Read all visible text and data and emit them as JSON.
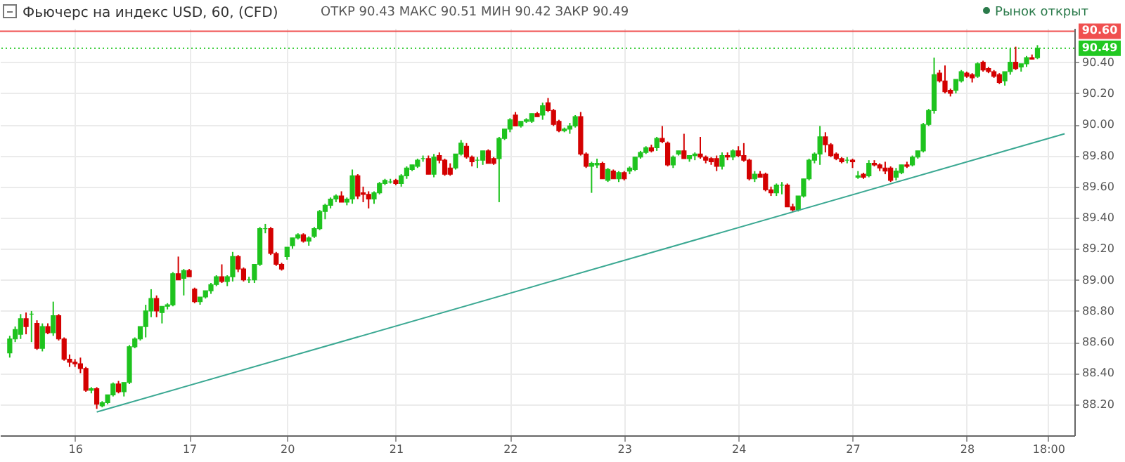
{
  "chart_data": {
    "type": "candlestick",
    "title": "Фьючерс на индекс USD, 60, (CFD)",
    "annotations": [
      "ОТКР 90.43 МАКС 90.51 МИН 90.42 ЗАКР 90.49",
      "Рынок открыт"
    ],
    "categories": [
      null,
      null,
      null,
      null,
      null,
      null,
      null,
      null,
      null,
      null,
      null,
      null,
      "16",
      null,
      null,
      null,
      null,
      null,
      null,
      null,
      null,
      null,
      null,
      null,
      null,
      null,
      null,
      null,
      null,
      null,
      null,
      null,
      null,
      "17",
      null,
      null,
      null,
      null,
      null,
      null,
      null,
      null,
      null,
      null,
      null,
      null,
      null,
      null,
      null,
      null,
      null,
      "20",
      null,
      null,
      null,
      null,
      null,
      null,
      null,
      null,
      null,
      null,
      null,
      null,
      null,
      null,
      null,
      null,
      null,
      null,
      null,
      "21",
      null,
      null,
      null,
      null,
      null,
      null,
      null,
      null,
      null,
      null,
      null,
      null,
      null,
      null,
      null,
      null,
      null,
      null,
      null,
      null,
      "22",
      null,
      null,
      null,
      null,
      null,
      null,
      null,
      null,
      null,
      null,
      null,
      null,
      null,
      null,
      null,
      null,
      null,
      null,
      null,
      null,
      "23",
      null,
      null,
      null,
      null,
      null,
      null,
      null,
      null,
      null,
      null,
      null,
      null,
      null,
      null,
      null,
      null,
      null,
      null,
      null,
      null,
      "24",
      null,
      null,
      null,
      null,
      null,
      null,
      null,
      null,
      null,
      null,
      null,
      null,
      null,
      null,
      null,
      null,
      null,
      null,
      null,
      null,
      "27",
      null,
      null,
      null,
      null,
      null,
      null,
      null,
      null,
      null,
      null,
      null,
      null,
      null,
      null,
      null,
      null,
      null,
      null,
      null,
      null,
      "28",
      null,
      null,
      null,
      null,
      null,
      null,
      null,
      null,
      null,
      null,
      null,
      null,
      null,
      null,
      "18:00",
      null,
      null,
      null
    ],
    "ohlc": [
      [
        88.53,
        88.64,
        88.5,
        88.62
      ],
      [
        88.62,
        88.7,
        88.6,
        88.68
      ],
      [
        88.65,
        88.78,
        88.62,
        88.75
      ],
      [
        88.75,
        88.79,
        88.65,
        88.7
      ],
      [
        88.78,
        88.8,
        88.6,
        88.78
      ],
      [
        88.72,
        88.74,
        88.55,
        88.56
      ],
      [
        88.56,
        88.72,
        88.54,
        88.7
      ],
      [
        88.7,
        88.72,
        88.65,
        88.66
      ],
      [
        88.66,
        88.86,
        88.64,
        88.77
      ],
      [
        88.77,
        88.78,
        88.61,
        88.62
      ],
      [
        88.62,
        88.63,
        88.48,
        88.49
      ],
      [
        88.49,
        88.52,
        88.44,
        88.47
      ],
      [
        88.47,
        88.49,
        88.44,
        88.46
      ],
      [
        88.46,
        88.5,
        88.4,
        88.43
      ],
      [
        88.43,
        88.44,
        88.28,
        88.29
      ],
      [
        88.29,
        88.31,
        88.27,
        88.3
      ],
      [
        88.3,
        88.31,
        88.17,
        88.2
      ],
      [
        88.19,
        88.22,
        88.18,
        88.21
      ],
      [
        88.21,
        88.26,
        88.2,
        88.26
      ],
      [
        88.26,
        88.34,
        88.25,
        88.33
      ],
      [
        88.33,
        88.35,
        88.27,
        88.28
      ],
      [
        88.28,
        88.34,
        88.25,
        88.34
      ],
      [
        88.34,
        88.58,
        88.33,
        88.57
      ],
      [
        88.57,
        88.63,
        88.56,
        88.62
      ],
      [
        88.62,
        88.7,
        88.61,
        88.7
      ],
      [
        88.7,
        88.84,
        88.63,
        88.8
      ],
      [
        88.8,
        88.94,
        88.76,
        88.88
      ],
      [
        88.88,
        88.9,
        88.76,
        88.8
      ],
      [
        88.79,
        88.83,
        88.72,
        88.83
      ],
      [
        88.83,
        88.85,
        88.81,
        88.84
      ],
      [
        88.84,
        89.05,
        88.83,
        89.04
      ],
      [
        89.04,
        89.15,
        89.0,
        89.0
      ],
      [
        89.01,
        89.07,
        88.9,
        89.06
      ],
      [
        89.06,
        89.07,
        89.02,
        89.02
      ],
      [
        88.94,
        88.95,
        88.85,
        88.86
      ],
      [
        88.86,
        88.89,
        88.84,
        88.89
      ],
      [
        88.89,
        88.93,
        88.88,
        88.93
      ],
      [
        88.93,
        88.98,
        88.91,
        88.97
      ],
      [
        88.97,
        89.03,
        88.96,
        89.02
      ],
      [
        89.02,
        89.1,
        88.98,
        88.99
      ],
      [
        88.99,
        89.03,
        88.96,
        89.02
      ],
      [
        89.02,
        89.18,
        88.99,
        89.15
      ],
      [
        89.15,
        89.16,
        89.05,
        89.07
      ],
      [
        89.07,
        89.08,
        88.99,
        89.0
      ],
      [
        89.0,
        89.02,
        88.98,
        89.0
      ],
      [
        89.0,
        89.1,
        88.98,
        89.1
      ],
      [
        89.1,
        89.34,
        89.09,
        89.33
      ],
      [
        89.33,
        89.36,
        89.3,
        89.33
      ],
      [
        89.33,
        89.34,
        89.16,
        89.17
      ],
      [
        89.17,
        89.18,
        89.09,
        89.1
      ],
      [
        89.1,
        89.11,
        89.06,
        89.07
      ],
      [
        89.15,
        89.21,
        89.13,
        89.21
      ],
      [
        89.22,
        89.27,
        89.2,
        89.27
      ],
      [
        89.27,
        89.3,
        89.26,
        89.29
      ],
      [
        89.29,
        89.3,
        89.24,
        89.25
      ],
      [
        89.25,
        89.28,
        89.22,
        89.27
      ],
      [
        89.28,
        89.34,
        89.27,
        89.33
      ],
      [
        89.33,
        89.45,
        89.32,
        89.44
      ],
      [
        89.44,
        89.49,
        89.39,
        89.48
      ],
      [
        89.48,
        89.53,
        89.46,
        89.52
      ],
      [
        89.52,
        89.55,
        89.5,
        89.54
      ],
      [
        89.54,
        89.57,
        89.5,
        89.5
      ],
      [
        89.5,
        89.53,
        89.48,
        89.52
      ],
      [
        89.52,
        89.71,
        89.49,
        89.67
      ],
      [
        89.67,
        89.68,
        89.52,
        89.54
      ],
      [
        89.56,
        89.6,
        89.5,
        89.55
      ],
      [
        89.55,
        89.57,
        89.46,
        89.52
      ],
      [
        89.52,
        89.57,
        89.49,
        89.56
      ],
      [
        89.56,
        89.63,
        89.55,
        89.62
      ],
      [
        89.62,
        89.65,
        89.61,
        89.64
      ],
      [
        89.63,
        89.65,
        89.62,
        89.63
      ],
      [
        89.64,
        89.65,
        89.61,
        89.62
      ],
      [
        89.62,
        89.68,
        89.6,
        89.67
      ],
      [
        89.67,
        89.73,
        89.65,
        89.72
      ],
      [
        89.71,
        89.74,
        89.7,
        89.74
      ],
      [
        89.73,
        89.78,
        89.72,
        89.77
      ],
      [
        89.78,
        89.8,
        89.76,
        89.78
      ],
      [
        89.78,
        89.8,
        89.68,
        89.68
      ],
      [
        89.68,
        89.81,
        89.66,
        89.79
      ],
      [
        89.8,
        89.82,
        89.75,
        89.77
      ],
      [
        89.77,
        89.78,
        89.67,
        89.68
      ],
      [
        89.72,
        89.75,
        89.67,
        89.68
      ],
      [
        89.72,
        89.81,
        89.71,
        89.81
      ],
      [
        89.81,
        89.9,
        89.8,
        89.88
      ],
      [
        89.86,
        89.88,
        89.78,
        89.79
      ],
      [
        89.79,
        89.8,
        89.73,
        89.76
      ],
      [
        89.77,
        89.79,
        89.72,
        89.77
      ],
      [
        89.77,
        89.83,
        89.74,
        89.83
      ],
      [
        89.83,
        89.84,
        89.75,
        89.75
      ],
      [
        89.78,
        89.79,
        89.74,
        89.75
      ],
      [
        89.78,
        89.92,
        89.5,
        89.91
      ],
      [
        89.91,
        89.97,
        89.9,
        89.97
      ],
      [
        89.97,
        90.04,
        89.95,
        90.03
      ],
      [
        90.06,
        90.08,
        89.99,
        89.99
      ],
      [
        89.99,
        90.02,
        89.98,
        90.02
      ],
      [
        90.02,
        90.04,
        90.01,
        90.03
      ],
      [
        90.02,
        90.07,
        90.01,
        90.07
      ],
      [
        90.07,
        90.08,
        90.05,
        90.05
      ],
      [
        90.06,
        90.14,
        90.03,
        90.12
      ],
      [
        90.14,
        90.17,
        90.08,
        90.09
      ],
      [
        90.09,
        90.1,
        89.99,
        90.0
      ],
      [
        90.02,
        90.03,
        89.95,
        89.96
      ],
      [
        89.96,
        89.98,
        89.95,
        89.97
      ],
      [
        89.97,
        90.01,
        89.94,
        89.99
      ],
      [
        89.99,
        90.06,
        89.98,
        90.05
      ],
      [
        90.05,
        90.08,
        89.8,
        89.81
      ],
      [
        89.81,
        89.82,
        89.72,
        89.73
      ],
      [
        89.73,
        89.76,
        89.56,
        89.75
      ],
      [
        89.74,
        89.78,
        89.72,
        89.75
      ],
      [
        89.75,
        89.76,
        89.65,
        89.65
      ],
      [
        89.64,
        89.72,
        89.63,
        89.71
      ],
      [
        89.7,
        89.71,
        89.65,
        89.65
      ],
      [
        89.65,
        89.7,
        89.63,
        89.69
      ],
      [
        89.69,
        89.7,
        89.64,
        89.65
      ],
      [
        89.7,
        89.73,
        89.68,
        89.72
      ],
      [
        89.71,
        89.79,
        89.7,
        89.79
      ],
      [
        89.79,
        89.83,
        89.78,
        89.82
      ],
      [
        89.82,
        89.86,
        89.81,
        89.85
      ],
      [
        89.85,
        89.87,
        89.82,
        89.83
      ],
      [
        89.85,
        89.92,
        89.83,
        89.91
      ],
      [
        89.91,
        89.99,
        89.88,
        89.89
      ],
      [
        89.88,
        89.89,
        89.73,
        89.74
      ],
      [
        89.74,
        89.8,
        89.72,
        89.79
      ],
      [
        89.81,
        89.83,
        89.8,
        89.83
      ],
      [
        89.83,
        89.94,
        89.78,
        89.78
      ],
      [
        89.78,
        89.8,
        89.76,
        89.8
      ],
      [
        89.8,
        89.82,
        89.77,
        89.81
      ],
      [
        89.81,
        89.92,
        89.78,
        89.79
      ],
      [
        89.79,
        89.8,
        89.75,
        89.77
      ],
      [
        89.78,
        89.79,
        89.74,
        89.76
      ],
      [
        89.78,
        89.8,
        89.7,
        89.73
      ],
      [
        89.73,
        89.82,
        89.71,
        89.8
      ],
      [
        89.8,
        89.82,
        89.77,
        89.79
      ],
      [
        89.79,
        89.84,
        89.77,
        89.83
      ],
      [
        89.83,
        89.86,
        89.79,
        89.8
      ],
      [
        89.8,
        89.88,
        89.76,
        89.77
      ],
      [
        89.77,
        89.78,
        89.64,
        89.65
      ],
      [
        89.65,
        89.7,
        89.63,
        89.68
      ],
      [
        89.68,
        89.7,
        89.66,
        89.66
      ],
      [
        89.68,
        89.69,
        89.57,
        89.58
      ],
      [
        89.58,
        89.6,
        89.54,
        89.56
      ],
      [
        89.56,
        89.62,
        89.54,
        89.61
      ],
      [
        89.61,
        89.63,
        89.55,
        89.61
      ],
      [
        89.61,
        89.62,
        89.47,
        89.47
      ],
      [
        89.47,
        89.49,
        89.44,
        89.45
      ],
      [
        89.45,
        89.54,
        89.44,
        89.54
      ],
      [
        89.54,
        89.65,
        89.53,
        89.65
      ],
      [
        89.65,
        89.78,
        89.64,
        89.77
      ],
      [
        89.77,
        89.82,
        89.75,
        89.81
      ],
      [
        89.81,
        89.99,
        89.74,
        89.92
      ],
      [
        89.92,
        89.95,
        89.82,
        89.87
      ],
      [
        89.87,
        89.88,
        89.79,
        89.8
      ],
      [
        89.81,
        89.82,
        89.77,
        89.78
      ],
      [
        89.78,
        89.79,
        89.75,
        89.76
      ],
      [
        89.77,
        89.79,
        89.75,
        89.77
      ],
      [
        89.77,
        89.78,
        89.72,
        89.76
      ],
      [
        89.66,
        89.7,
        89.65,
        89.67
      ],
      [
        89.68,
        89.69,
        89.65,
        89.66
      ],
      [
        89.67,
        89.77,
        89.66,
        89.75
      ],
      [
        89.75,
        89.77,
        89.73,
        89.74
      ],
      [
        89.74,
        89.75,
        89.7,
        89.72
      ],
      [
        89.72,
        89.76,
        89.68,
        89.7
      ],
      [
        89.72,
        89.73,
        89.63,
        89.64
      ],
      [
        89.66,
        89.72,
        89.64,
        89.7
      ],
      [
        89.69,
        89.74,
        89.68,
        89.74
      ],
      [
        89.74,
        89.76,
        89.72,
        89.73
      ],
      [
        89.74,
        89.8,
        89.73,
        89.79
      ],
      [
        89.79,
        89.83,
        89.78,
        89.83
      ],
      [
        89.83,
        90.01,
        89.82,
        90.0
      ],
      [
        90.0,
        90.1,
        89.99,
        90.09
      ],
      [
        90.09,
        90.43,
        90.07,
        90.32
      ],
      [
        90.33,
        90.35,
        90.27,
        90.28
      ],
      [
        90.28,
        90.38,
        90.2,
        90.21
      ],
      [
        90.22,
        90.23,
        90.18,
        90.2
      ],
      [
        90.22,
        90.29,
        90.2,
        90.29
      ],
      [
        90.28,
        90.35,
        90.27,
        90.34
      ],
      [
        90.33,
        90.34,
        90.3,
        90.31
      ],
      [
        90.32,
        90.33,
        90.27,
        90.3
      ],
      [
        90.31,
        90.4,
        90.3,
        90.39
      ],
      [
        90.4,
        90.41,
        90.34,
        90.35
      ],
      [
        90.36,
        90.37,
        90.33,
        90.34
      ],
      [
        90.34,
        90.35,
        90.3,
        90.31
      ],
      [
        90.32,
        90.33,
        90.26,
        90.27
      ],
      [
        90.28,
        90.34,
        90.25,
        90.34
      ],
      [
        90.34,
        90.49,
        90.32,
        90.4
      ],
      [
        90.4,
        90.5,
        90.35,
        90.36
      ],
      [
        90.37,
        90.39,
        90.34,
        90.39
      ],
      [
        90.39,
        90.44,
        90.37,
        90.43
      ],
      [
        90.43,
        90.45,
        90.42,
        90.42
      ],
      [
        90.43,
        90.51,
        90.42,
        90.49
      ],
      null,
      null,
      null,
      null,
      null
    ],
    "colors": [
      "#1ec31e",
      "#1ec31e",
      "#1ec31e",
      "#d40000",
      "#1ec31e",
      "#d40000",
      "#1ec31e",
      "#d40000",
      "#1ec31e",
      "#d40000",
      "#d40000",
      "#d40000",
      "#d40000",
      "#d40000",
      "#d40000",
      "#1ec31e",
      "#d40000",
      "#1ec31e",
      "#1ec31e",
      "#1ec31e",
      "#d40000",
      "#1ec31e",
      "#1ec31e",
      "#1ec31e",
      "#1ec31e",
      "#1ec31e",
      "#1ec31e",
      "#d40000",
      "#1ec31e",
      "#1ec31e",
      "#1ec31e",
      "#d40000",
      "#1ec31e",
      "#d40000",
      "#d40000",
      "#1ec31e",
      "#1ec31e",
      "#1ec31e",
      "#1ec31e",
      "#d40000",
      "#1ec31e",
      "#1ec31e",
      "#d40000",
      "#d40000",
      "#1ec31e",
      "#1ec31e",
      "#1ec31e",
      "#1ec31e",
      "#d40000",
      "#d40000",
      "#d40000",
      "#1ec31e",
      "#1ec31e",
      "#1ec31e",
      "#d40000",
      "#1ec31e",
      "#1ec31e",
      "#1ec31e",
      "#1ec31e",
      "#1ec31e",
      "#1ec31e",
      "#d40000",
      "#1ec31e",
      "#1ec31e",
      "#d40000",
      "#d40000",
      "#d40000",
      "#1ec31e",
      "#1ec31e",
      "#1ec31e",
      "#1ec31e",
      "#d40000",
      "#1ec31e",
      "#1ec31e",
      "#1ec31e",
      "#1ec31e",
      "#1ec31e",
      "#d40000",
      "#1ec31e",
      "#d40000",
      "#d40000",
      "#d40000",
      "#1ec31e",
      "#1ec31e",
      "#d40000",
      "#d40000",
      "#1ec31e",
      "#1ec31e",
      "#d40000",
      "#d40000",
      "#1ec31e",
      "#1ec31e",
      "#1ec31e",
      "#d40000",
      "#1ec31e",
      "#1ec31e",
      "#1ec31e",
      "#d40000",
      "#1ec31e",
      "#d40000",
      "#d40000",
      "#d40000",
      "#1ec31e",
      "#1ec31e",
      "#1ec31e",
      "#d40000",
      "#d40000",
      "#1ec31e",
      "#1ec31e",
      "#d40000",
      "#1ec31e",
      "#d40000",
      "#1ec31e",
      "#d40000",
      "#1ec31e",
      "#1ec31e",
      "#1ec31e",
      "#1ec31e",
      "#d40000",
      "#1ec31e",
      "#d40000",
      "#d40000",
      "#1ec31e",
      "#1ec31e",
      "#d40000",
      "#1ec31e",
      "#1ec31e",
      "#d40000",
      "#d40000",
      "#d40000",
      "#d40000",
      "#1ec31e",
      "#d40000",
      "#1ec31e",
      "#d40000",
      "#d40000",
      "#d40000",
      "#1ec31e",
      "#d40000",
      "#d40000",
      "#d40000",
      "#1ec31e",
      "#1ec31e",
      "#d40000",
      "#d40000",
      "#1ec31e",
      "#1ec31e",
      "#1ec31e",
      "#1ec31e",
      "#1ec31e",
      "#d40000",
      "#d40000",
      "#d40000",
      "#d40000",
      "#1ec31e",
      "#d40000",
      "#1ec31e",
      "#d40000",
      "#1ec31e",
      "#d40000",
      "#d40000",
      "#d40000",
      "#d40000",
      "#1ec31e",
      "#1ec31e",
      "#d40000",
      "#1ec31e",
      "#1ec31e",
      "#1ec31e",
      "#1ec31e",
      "#1ec31e",
      "#d40000",
      "#d40000",
      "#d40000",
      "#1ec31e",
      "#1ec31e",
      "#d40000",
      "#d40000",
      "#1ec31e",
      "#d40000",
      "#d40000",
      "#d40000",
      "#d40000",
      "#1ec31e",
      "#1ec31e",
      "#d40000",
      "#1ec31e",
      "#1ec31e",
      "#d40000",
      "#1ec31e",
      null,
      null,
      null,
      null,
      null
    ],
    "series": [
      {
        "type": "line",
        "color": "#3aa892",
        "values": [
          null,
          null,
          null,
          null,
          null,
          null,
          null,
          null,
          null,
          null,
          null,
          null,
          null,
          null,
          null,
          null,
          88.15,
          null,
          null,
          null,
          null,
          null,
          null,
          null,
          null,
          null,
          null,
          null,
          null,
          null,
          null,
          null,
          null,
          null,
          null,
          null,
          null,
          null,
          null,
          null,
          null,
          null,
          null,
          null,
          null,
          null,
          null,
          null,
          null,
          null,
          null,
          null,
          null,
          null,
          null,
          null,
          null,
          null,
          null,
          null,
          null,
          null,
          null,
          null,
          null,
          null,
          null,
          null,
          null,
          null,
          null,
          null,
          null,
          null,
          null,
          null,
          null,
          null,
          null,
          null,
          null,
          null,
          null,
          null,
          null,
          null,
          null,
          null,
          null,
          null,
          null,
          null,
          null,
          null,
          null,
          null,
          null,
          null,
          null,
          null,
          null,
          null,
          null,
          null,
          null,
          null,
          null,
          null,
          null,
          null,
          null,
          null,
          null,
          null,
          null,
          null,
          null,
          null,
          null,
          null,
          null,
          null,
          null,
          null,
          null,
          null,
          null,
          null,
          null,
          null,
          null,
          null,
          null,
          null,
          null,
          null,
          null,
          null,
          null,
          null,
          null,
          null,
          null,
          null,
          null,
          null,
          null,
          null,
          null,
          null,
          null,
          null,
          null,
          null,
          null,
          null,
          null,
          null,
          null,
          null,
          null,
          null,
          null,
          null,
          null,
          null,
          null,
          null,
          null,
          null,
          null,
          null,
          null,
          null,
          null,
          null,
          null,
          null,
          null,
          null,
          null,
          null,
          null,
          null,
          null,
          null,
          null,
          null,
          null,
          null,
          null,
          null,
          null,
          null,
          89.94
        ]
      }
    ],
    "ref_lines": [
      {
        "axis": "y",
        "value": 90.6,
        "label": "90.60",
        "color": "#f05050",
        "line_style": "solid"
      },
      {
        "axis": "y",
        "value": 90.49,
        "label": "90.49",
        "color": "#22c822",
        "line_style": "dotted"
      }
    ],
    "ylim": [
      88.0,
      90.62
    ],
    "yticks": [
      {
        "value": 88.2,
        "label": "88.20"
      },
      {
        "value": 88.4,
        "label": "88.40"
      },
      {
        "value": 88.6,
        "label": "88.60"
      },
      {
        "value": 88.8,
        "label": "88.80"
      },
      {
        "value": 89.0,
        "label": "89.00"
      },
      {
        "value": 89.2,
        "label": "89.20"
      },
      {
        "value": 89.4,
        "label": "89.40"
      },
      {
        "value": 89.6,
        "label": "89.60"
      },
      {
        "value": 89.8,
        "label": "89.80"
      },
      {
        "value": 90.0,
        "label": "90.00"
      },
      {
        "value": 90.2,
        "label": "90.20"
      },
      {
        "value": 90.4,
        "label": "90.40"
      }
    ],
    "grid": true
  }
}
